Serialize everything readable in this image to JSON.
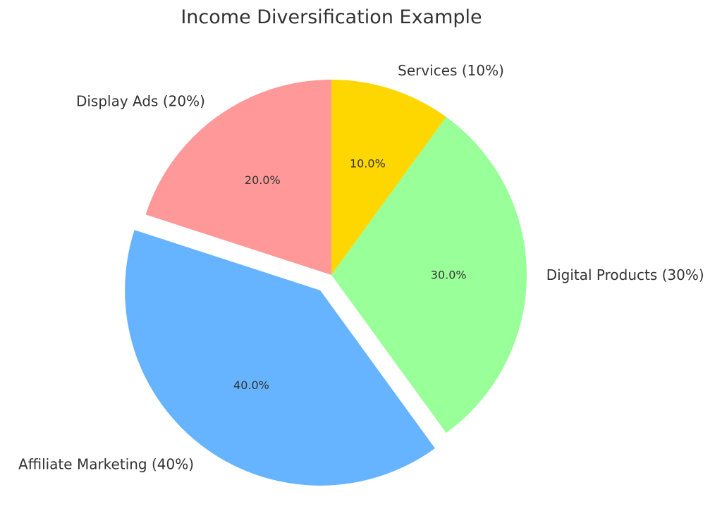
{
  "chart_data": {
    "type": "pie",
    "title": "Income Diversification Example",
    "slices": [
      {
        "label": "Services (10%)",
        "value": 10,
        "pct_label": "10.0%",
        "color": "#FFD700",
        "exploded": false
      },
      {
        "label": "Digital Products (30%)",
        "value": 30,
        "pct_label": "30.0%",
        "color": "#99FF99",
        "exploded": false
      },
      {
        "label": "Affiliate Marketing (40%)",
        "value": 40,
        "pct_label": "40.0%",
        "color": "#66B3FF",
        "exploded": true
      },
      {
        "label": "Display Ads (20%)",
        "value": 20,
        "pct_label": "20.0%",
        "color": "#FF9999",
        "exploded": false
      }
    ],
    "start": "top",
    "direction": "clockwise",
    "legend": "none"
  }
}
